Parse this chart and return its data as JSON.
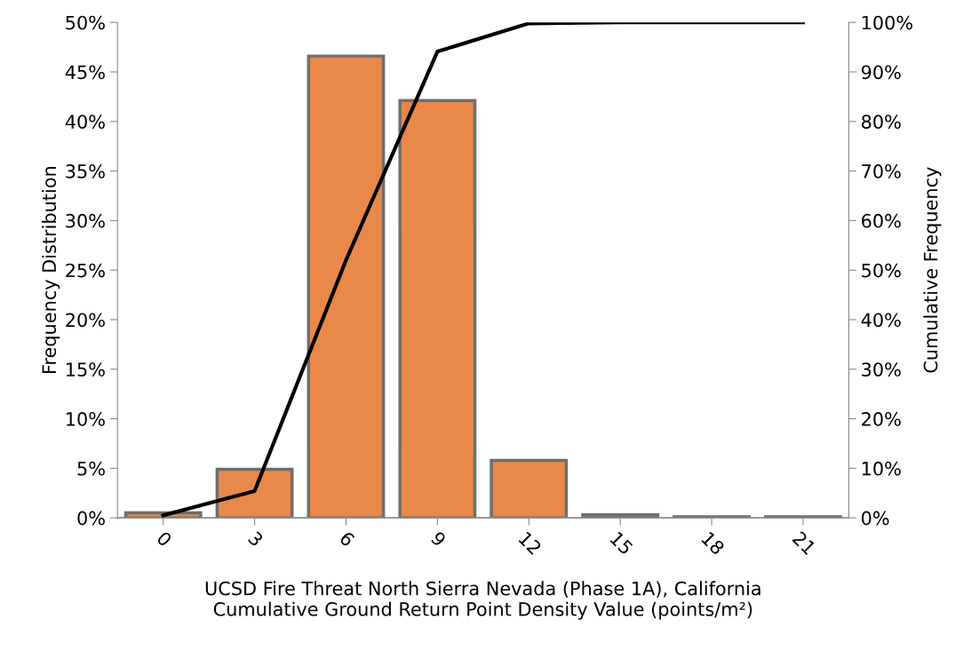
{
  "chart_data": {
    "type": "bar",
    "categories": [
      "0",
      "3",
      "6",
      "9",
      "12",
      "15",
      "18",
      "21"
    ],
    "xlabel": "UCSD Fire Threat North Sierra Nevada (Phase 1A), California\nCumulative Ground Return Point Density Value (points/m²)",
    "ylabel": "Frequency Distribution",
    "y2label": "Cumulative Frequency",
    "series": [
      {
        "color": "#e8884a",
        "values": [
          0.5,
          4.9,
          46.6,
          42.1,
          5.8,
          0.3,
          0.1,
          0.1
        ]
      },
      {
        "type": "line",
        "axis": "y2",
        "color": "#000000",
        "values": [
          0.5,
          5.4,
          52.0,
          94.1,
          99.8,
          100,
          100,
          100
        ]
      }
    ],
    "ylim": [
      0,
      50
    ],
    "yticks": [
      {
        "value": 0,
        "label": "0%"
      },
      {
        "value": 5,
        "label": "5%"
      },
      {
        "value": 10,
        "label": "10%"
      },
      {
        "value": 15,
        "label": "15%"
      },
      {
        "value": 20,
        "label": "20%"
      },
      {
        "value": 25,
        "label": "25%"
      },
      {
        "value": 30,
        "label": "30%"
      },
      {
        "value": 35,
        "label": "35%"
      },
      {
        "value": 40,
        "label": "40%"
      },
      {
        "value": 45,
        "label": "45%"
      },
      {
        "value": 50,
        "label": "50%"
      }
    ],
    "y2lim": [
      0,
      100
    ],
    "y2ticks": [
      {
        "value": 0,
        "label": "0%"
      },
      {
        "value": 10,
        "label": "10%"
      },
      {
        "value": 20,
        "label": "20%"
      },
      {
        "value": 30,
        "label": "30%"
      },
      {
        "value": 40,
        "label": "40%"
      },
      {
        "value": 50,
        "label": "50%"
      },
      {
        "value": 60,
        "label": "60%"
      },
      {
        "value": 70,
        "label": "70%"
      },
      {
        "value": 80,
        "label": "80%"
      },
      {
        "value": 90,
        "label": "90%"
      },
      {
        "value": 100,
        "label": "100%"
      }
    ],
    "grid": false,
    "legend": false,
    "marker": "none",
    "line_style": "solid"
  }
}
